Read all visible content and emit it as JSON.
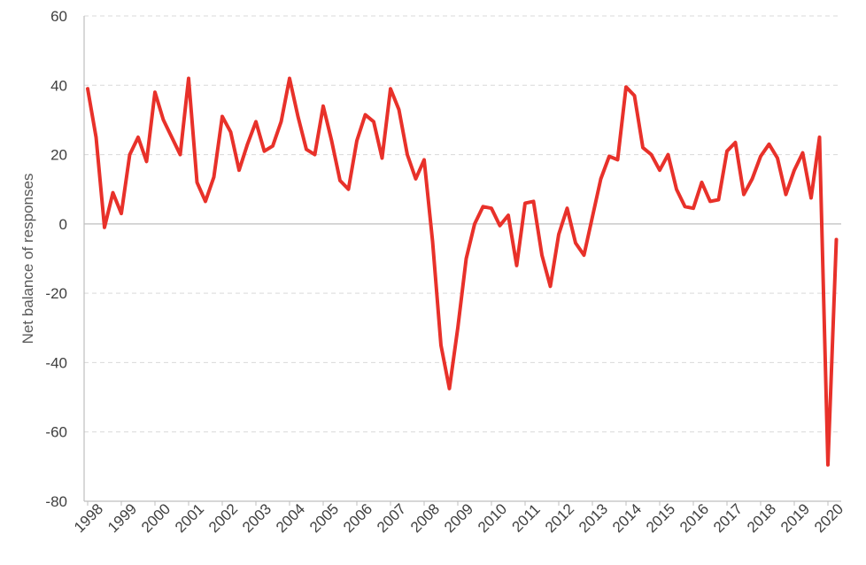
{
  "chart_data": {
    "type": "line",
    "title": "",
    "xlabel": "",
    "ylabel": "Net balance of responses",
    "ylim": [
      -80,
      60
    ],
    "yticks": [
      -80,
      -60,
      -40,
      -20,
      0,
      20,
      40,
      60
    ],
    "grid": true,
    "legend": "none",
    "x_tick_labels": [
      "1998",
      "1999",
      "2000",
      "2001",
      "2002",
      "2003",
      "2004",
      "2005",
      "2006",
      "2007",
      "2008",
      "2009",
      "2010",
      "2011",
      "2012",
      "2013",
      "2014",
      "2015",
      "2016",
      "2017",
      "2018",
      "2019",
      "2020"
    ],
    "series": [
      {
        "name": "",
        "color": "#e8312a",
        "values": [
          39,
          25,
          -1,
          9,
          3,
          20,
          25,
          18,
          38,
          30,
          25,
          20,
          42,
          12,
          6.5,
          13.5,
          31,
          26.5,
          15.5,
          23,
          29.5,
          21,
          22.5,
          29.5,
          42,
          31,
          21.5,
          20,
          34,
          24,
          12.5,
          10,
          24,
          31.5,
          29.5,
          19,
          39,
          33,
          20,
          13,
          18.5,
          -5,
          -35,
          -47.5,
          -30,
          -10,
          0,
          5,
          4.5,
          -0.5,
          2.5,
          -12,
          6,
          6.5,
          -9,
          -18,
          -3,
          4.5,
          -5.5,
          -9,
          2,
          13,
          19.5,
          18.5,
          39.5,
          37,
          22,
          20,
          15.5,
          20,
          10,
          5,
          4.5,
          12,
          6.5,
          7,
          21,
          23.5,
          8.5,
          13,
          19.5,
          23,
          19,
          8.5,
          15.5,
          20.5,
          7.5,
          25,
          -69.5,
          -4.5
        ]
      }
    ]
  }
}
